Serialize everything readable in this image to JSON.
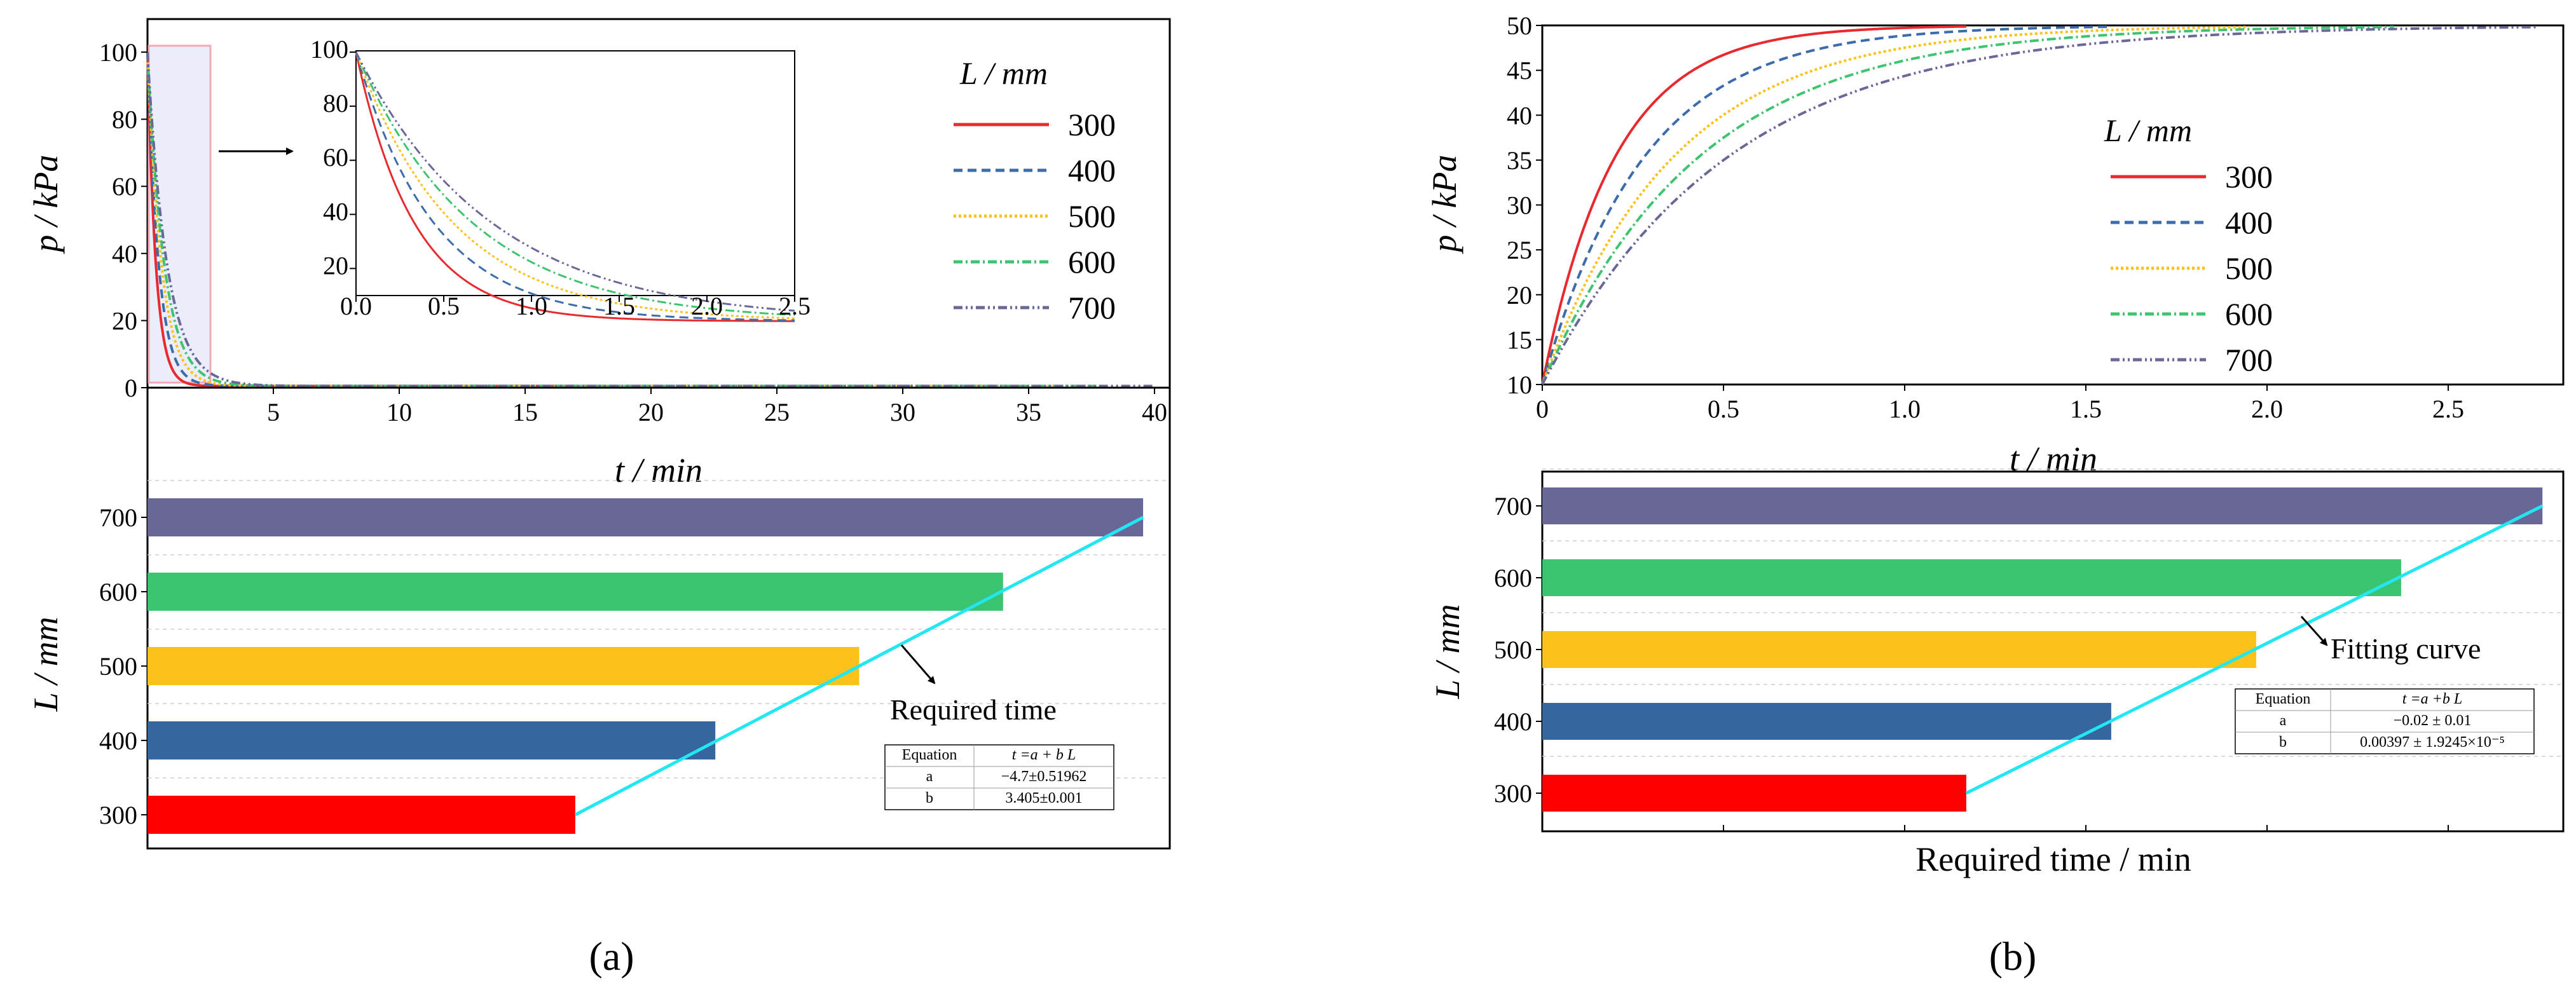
{
  "panel_labels": {
    "a": "(a)",
    "b": "(b)"
  },
  "chart_data": [
    {
      "id": "a_top",
      "type": "line",
      "title": "",
      "xlabel": "t / min",
      "ylabel": "p / kPa",
      "xlim": [
        0,
        40
      ],
      "ylim": [
        0,
        100
      ],
      "xticks": [
        5,
        10,
        15,
        20,
        25,
        30,
        35,
        40
      ],
      "yticks": [
        0,
        20,
        40,
        60,
        80,
        100
      ],
      "grid": false,
      "legend": {
        "title": "L / mm",
        "placement": "top-right"
      },
      "model": "decay",
      "series": [
        {
          "name": "300",
          "color": "#e8292d",
          "dash": "",
          "y0": 100,
          "yinf": 0.5,
          "tau": 0.33,
          "tend": 17
        },
        {
          "name": "400",
          "color": "#3c6cac",
          "dash": "14,8",
          "y0": 100,
          "yinf": 0.5,
          "tau": 0.44,
          "tend": 34
        },
        {
          "name": "500",
          "color": "#fcc21a",
          "dash": "4,4",
          "y0": 100,
          "yinf": 0.5,
          "tau": 0.55,
          "tend": 36
        },
        {
          "name": "600",
          "color": "#3ec46e",
          "dash": "14,5,3,5",
          "y0": 100,
          "yinf": 0.5,
          "tau": 0.66,
          "tend": 38
        },
        {
          "name": "700",
          "color": "#6a6899",
          "dash": "14,5,3,5,3,5",
          "y0": 100,
          "yinf": 0.5,
          "tau": 0.77,
          "tend": 40
        }
      ],
      "inset": {
        "xlim": [
          0,
          2.5
        ],
        "ylim": [
          10,
          100
        ],
        "xticks": [
          0.0,
          0.5,
          1.0,
          1.5,
          2.0,
          2.5
        ],
        "yticks": [
          20,
          40,
          60,
          80,
          100
        ],
        "highlight_x": [
          0,
          2.5
        ]
      }
    },
    {
      "id": "a_bottom",
      "type": "bar",
      "orientation": "horizontal",
      "xlabel": "",
      "ylabel": "L / mm",
      "categories": [
        "300",
        "400",
        "500",
        "600",
        "700"
      ],
      "values": [
        11.3,
        15.0,
        18.8,
        22.6,
        26.3
      ],
      "xlim": [
        0,
        26.5
      ],
      "colors": [
        "#ff0000",
        "#35679e",
        "#fdc21a",
        "#3bc46f",
        "#686797"
      ],
      "fit_line": {
        "color": "#23e6f3",
        "from": [
          11.3,
          300
        ],
        "to": [
          26.3,
          700
        ]
      },
      "annotation": "Required time",
      "equation_table": {
        "header": [
          "Equation",
          "t =a + b L"
        ],
        "rows": [
          [
            "a",
            "−4.7±0.51962"
          ],
          [
            "b",
            "3.405±0.001"
          ]
        ]
      }
    },
    {
      "id": "b_top",
      "type": "line",
      "title": "",
      "xlabel": "t / min",
      "ylabel": "p / kPa",
      "xlim": [
        0,
        2.8
      ],
      "ylim": [
        10,
        50
      ],
      "xticks": [
        0,
        0.5,
        1.0,
        1.5,
        2.0,
        2.5
      ],
      "xticklabels": [
        "0",
        "0.5",
        "1.0",
        "1.5",
        "2.0",
        "2.5"
      ],
      "yticks": [
        10,
        15,
        20,
        25,
        30,
        35,
        40,
        45,
        50
      ],
      "grid": false,
      "legend": {
        "title": "L / mm",
        "placement": "top-right"
      },
      "model": "rise",
      "series": [
        {
          "name": "300",
          "color": "#e8292d",
          "dash": "",
          "y0": 10,
          "yinf": 50,
          "tau": 0.2,
          "tend": 1.17
        },
        {
          "name": "400",
          "color": "#3c6cac",
          "dash": "14,8",
          "y0": 10,
          "yinf": 50,
          "tau": 0.28,
          "tend": 1.56
        },
        {
          "name": "500",
          "color": "#fcc21a",
          "dash": "4,4",
          "y0": 10,
          "yinf": 50,
          "tau": 0.36,
          "tend": 1.95
        },
        {
          "name": "600",
          "color": "#3ec46e",
          "dash": "14,5,3,5",
          "y0": 10,
          "yinf": 50,
          "tau": 0.43,
          "tend": 2.35
        },
        {
          "name": "700",
          "color": "#6a6899",
          "dash": "14,5,3,5,3,5",
          "y0": 10,
          "yinf": 50,
          "tau": 0.51,
          "tend": 2.75
        }
      ]
    },
    {
      "id": "b_bottom",
      "type": "bar",
      "orientation": "horizontal",
      "xlabel": "Required time / min",
      "ylabel": "L / mm",
      "categories": [
        "300",
        "400",
        "500",
        "600",
        "700"
      ],
      "values": [
        1.17,
        1.57,
        1.97,
        2.37,
        2.76
      ],
      "xlim": [
        0,
        2.8
      ],
      "colors": [
        "#ff0000",
        "#35679e",
        "#fdc21a",
        "#3bc46f",
        "#686797"
      ],
      "fit_line": {
        "color": "#23e6f3",
        "from": [
          1.17,
          300
        ],
        "to": [
          2.76,
          700
        ]
      },
      "annotation": "Fitting curve",
      "equation_table": {
        "header": [
          "Equation",
          "t =a +b L"
        ],
        "rows": [
          [
            "a",
            "−0.02 ± 0.01"
          ],
          [
            "b",
            "0.00397 ± 1.9245×10⁻⁵"
          ]
        ]
      }
    }
  ]
}
